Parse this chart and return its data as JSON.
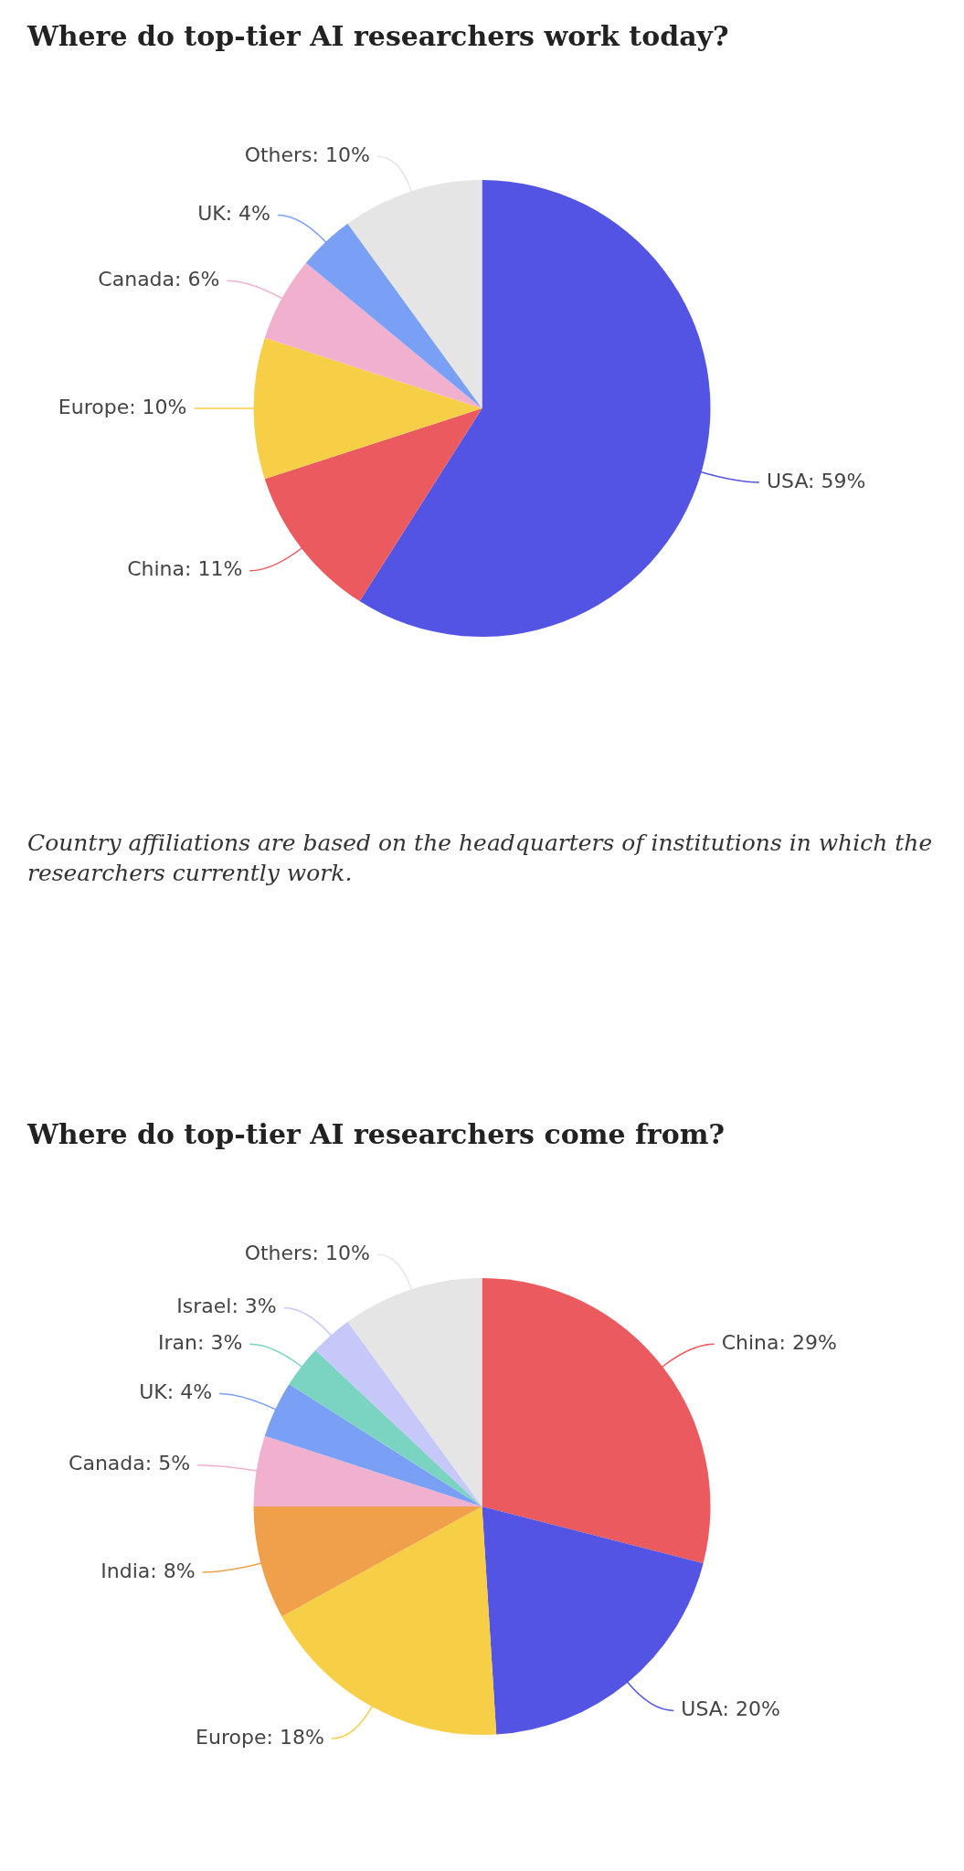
{
  "chart_data": [
    {
      "type": "pie",
      "title": "Where do top-tier AI researchers work today?",
      "categories": [
        "USA",
        "China",
        "Europe",
        "Canada",
        "UK",
        "Others"
      ],
      "values": [
        59,
        11,
        10,
        6,
        4,
        10
      ],
      "value_labels": [
        "59%",
        "11%",
        "10%",
        "6%",
        "4%",
        "10%"
      ],
      "colors": [
        "#5454e4",
        "#eb5a5e",
        "#f6cf47",
        "#f2b0cf",
        "#7aa0f5",
        "#e5e5e5"
      ],
      "annotations": [
        "Country affiliations are based on the headquarters of institutions in which the researchers currently work."
      ]
    },
    {
      "type": "pie",
      "title": "Where do top-tier AI researchers come from?",
      "categories": [
        "China",
        "USA",
        "Europe",
        "India",
        "Canada",
        "UK",
        "Iran",
        "Israel",
        "Others"
      ],
      "values": [
        29,
        20,
        18,
        8,
        5,
        4,
        3,
        3,
        10
      ],
      "value_labels": [
        "29%",
        "20%",
        "18%",
        "8%",
        "5%",
        "4%",
        "3%",
        "3%",
        "10%"
      ],
      "colors": [
        "#eb5a5e",
        "#5454e4",
        "#f6cf47",
        "#f0a04b",
        "#f2b0cf",
        "#7aa0f5",
        "#7bd3c2",
        "#c5c8f8",
        "#e5e5e5"
      ]
    }
  ]
}
